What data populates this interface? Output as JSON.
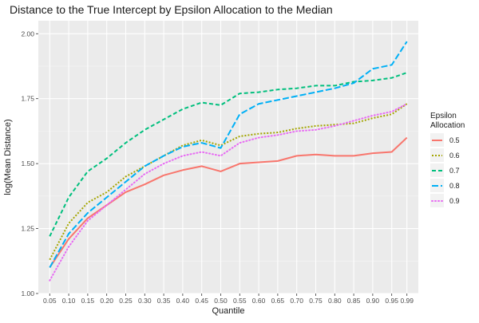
{
  "chart_data": {
    "type": "line",
    "title": "Distance to the True Intercept by Epsilon Allocation to the Median",
    "xlabel": "Quantile",
    "ylabel": "log(Mean Distance)",
    "x": [
      0.05,
      0.1,
      0.15,
      0.2,
      0.25,
      0.3,
      0.35,
      0.4,
      0.45,
      0.5,
      0.55,
      0.6,
      0.65,
      0.7,
      0.75,
      0.8,
      0.85,
      0.9,
      0.95,
      0.99
    ],
    "x_tick_labels": [
      "0.05",
      "0.10",
      "0.15",
      "0.20",
      "0.25",
      "0.30",
      "0.35",
      "0.40",
      "0.45",
      "0.50",
      "0.55",
      "0.60",
      "0.65",
      "0.70",
      "0.75",
      "0.80",
      "0.85",
      "0.90",
      "0.95",
      "0.99"
    ],
    "xlim": [
      0.02,
      1.02
    ],
    "ylim": [
      1.0,
      2.05
    ],
    "y_ticks": [
      1.0,
      1.25,
      1.5,
      1.75,
      2.0
    ],
    "y_tick_labels": [
      "1.00",
      "1.25",
      "1.50",
      "1.75",
      "2.00"
    ],
    "grid": true,
    "legend": {
      "title_lines": [
        "Epsilon",
        "Allocation"
      ],
      "position": "right"
    },
    "series": [
      {
        "name": "0.5",
        "color": "#F8766D",
        "dash": "solid",
        "values": [
          1.1,
          1.21,
          1.29,
          1.34,
          1.39,
          1.42,
          1.455,
          1.475,
          1.49,
          1.47,
          1.5,
          1.505,
          1.51,
          1.53,
          1.535,
          1.53,
          1.53,
          1.54,
          1.545,
          1.6
        ]
      },
      {
        "name": "0.6",
        "color": "#A3A500",
        "dash": "dotted-dash",
        "values": [
          1.13,
          1.27,
          1.35,
          1.39,
          1.45,
          1.49,
          1.53,
          1.57,
          1.59,
          1.57,
          1.605,
          1.615,
          1.62,
          1.635,
          1.645,
          1.65,
          1.655,
          1.675,
          1.69,
          1.73
        ]
      },
      {
        "name": "0.7",
        "color": "#00BF7D",
        "dash": "dash",
        "values": [
          1.22,
          1.37,
          1.47,
          1.52,
          1.58,
          1.63,
          1.67,
          1.71,
          1.735,
          1.725,
          1.77,
          1.775,
          1.785,
          1.79,
          1.8,
          1.8,
          1.815,
          1.82,
          1.83,
          1.85
        ]
      },
      {
        "name": "0.8",
        "color": "#00B0F6",
        "dash": "longdash",
        "values": [
          1.1,
          1.23,
          1.31,
          1.37,
          1.43,
          1.49,
          1.53,
          1.565,
          1.58,
          1.56,
          1.69,
          1.73,
          1.745,
          1.76,
          1.775,
          1.79,
          1.81,
          1.865,
          1.88,
          1.97
        ]
      },
      {
        "name": "0.9",
        "color": "#E76BF3",
        "dash": "dot",
        "values": [
          1.05,
          1.18,
          1.28,
          1.34,
          1.4,
          1.46,
          1.5,
          1.53,
          1.545,
          1.53,
          1.58,
          1.6,
          1.61,
          1.625,
          1.63,
          1.645,
          1.665,
          1.685,
          1.7,
          1.73
        ]
      }
    ]
  }
}
